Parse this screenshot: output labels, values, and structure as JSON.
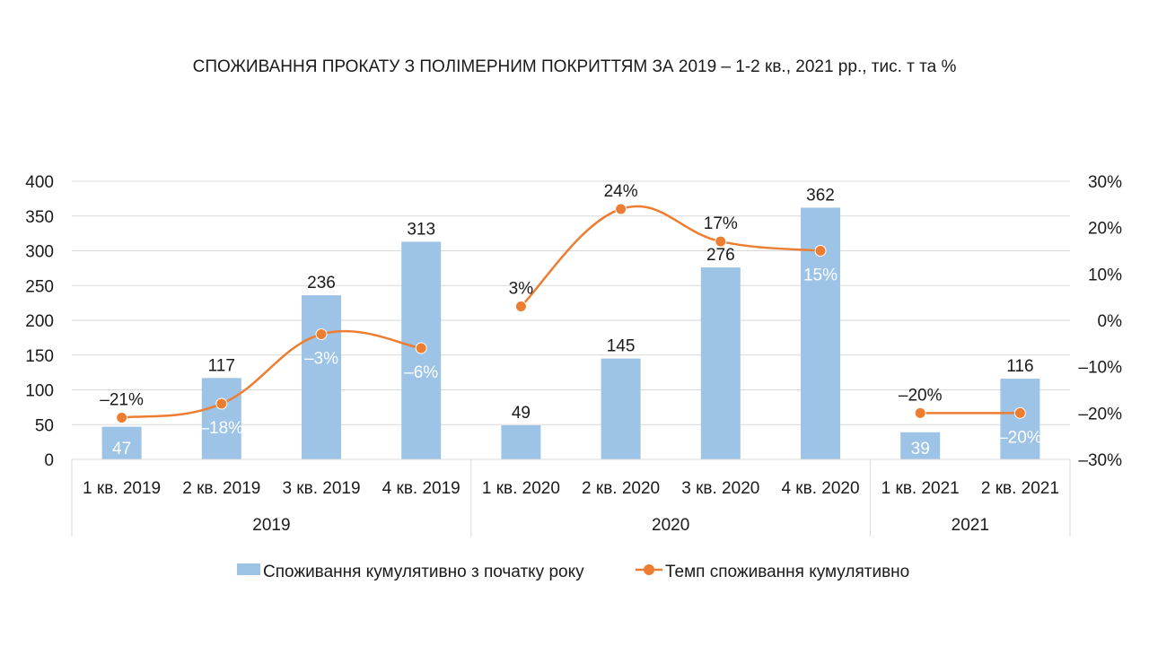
{
  "chart_data": {
    "type": "bar",
    "title": "СПОЖИВАННЯ ПРОКАТУ З ПОЛІМЕРНИМ ПОКРИТТЯМ ЗА 2019 – 1-2 кв., 2021 рр., тис. т та %",
    "categories": [
      "1 кв. 2019",
      "2 кв. 2019",
      "3 кв. 2019",
      "4 кв. 2019",
      "1 кв. 2020",
      "2 кв. 2020",
      "3 кв. 2020",
      "4 кв. 2020",
      "1 кв. 2021",
      "2 кв. 2021"
    ],
    "groups": [
      {
        "label": "2019",
        "count": 4
      },
      {
        "label": "2020",
        "count": 4
      },
      {
        "label": "2021",
        "count": 2
      }
    ],
    "series": [
      {
        "name": "Споживання кумулятивно з початку року",
        "type": "bar",
        "axis": "left",
        "color": "#9DC3E6",
        "values": [
          47,
          117,
          236,
          313,
          49,
          145,
          276,
          362,
          39,
          116
        ],
        "labels": [
          "47",
          "117",
          "236",
          "313",
          "49",
          "145",
          "276",
          "362",
          "39",
          "116"
        ]
      },
      {
        "name": "Темп споживання кумулятивно",
        "type": "line",
        "axis": "right",
        "color": "#ED7D31",
        "values": [
          -21,
          -18,
          -3,
          -6,
          3,
          24,
          17,
          15,
          -20,
          -20
        ],
        "labels": [
          "-21%",
          "-18%",
          "-3%",
          "-6%",
          "3%",
          "24%",
          "17%",
          "15%",
          "-20%",
          "-20%"
        ]
      }
    ],
    "y_left": {
      "min": 0,
      "max": 400,
      "step": 50,
      "ticks": [
        "0",
        "50",
        "100",
        "150",
        "200",
        "250",
        "300",
        "350",
        "400"
      ]
    },
    "y_right": {
      "min": -30,
      "max": 30,
      "step": 10,
      "ticks": [
        "-30%",
        "-20%",
        "-10%",
        "0%",
        "10%",
        "20%",
        "30%"
      ]
    },
    "grid": true,
    "legend": "bottom"
  }
}
